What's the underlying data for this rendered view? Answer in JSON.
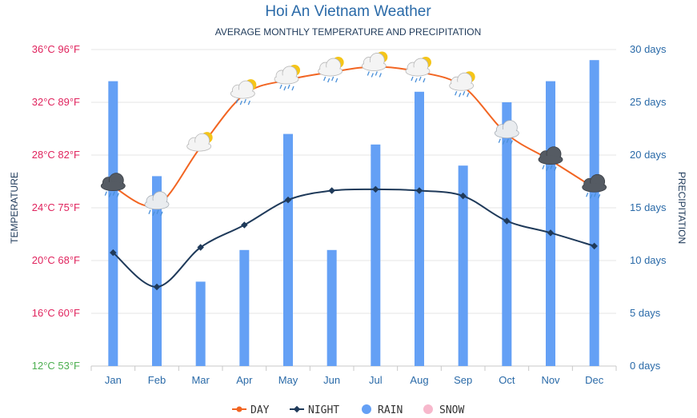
{
  "title": "Hoi An Vietnam Weather",
  "subtitle": "AVERAGE MONTHLY TEMPERATURE AND PRECIPITATION",
  "chart_data": {
    "type": "bar+line",
    "categories": [
      "Jan",
      "Feb",
      "Mar",
      "Apr",
      "May",
      "Jun",
      "Jul",
      "Aug",
      "Sep",
      "Oct",
      "Nov",
      "Dec"
    ],
    "left_axis": {
      "label": "TEMPERATURE",
      "unit": "°C",
      "ylim": [
        12,
        36
      ],
      "ticks": [
        "12°C 53°F",
        "16°C 60°F",
        "20°C 68°F",
        "24°C 75°F",
        "28°C 82°F",
        "32°C 89°F",
        "36°C 96°F"
      ]
    },
    "right_axis": {
      "label": "PRECIPITATION",
      "unit": "days",
      "ylim": [
        0,
        30
      ],
      "ticks": [
        "0 days",
        "5 days",
        "10 days",
        "15 days",
        "20 days",
        "25 days",
        "30 days"
      ]
    },
    "series": [
      {
        "name": "DAY",
        "kind": "line",
        "axis": "left",
        "color": "#f26522",
        "values": [
          25.6,
          24.2,
          28.6,
          32.6,
          33.7,
          34.3,
          34.7,
          34.3,
          33.2,
          29.6,
          27.6,
          25.5
        ]
      },
      {
        "name": "NIGHT",
        "kind": "line",
        "axis": "left",
        "color": "#1f3a5a",
        "values": [
          20.6,
          18.0,
          21.0,
          22.7,
          24.6,
          25.3,
          25.4,
          25.3,
          24.9,
          23.0,
          22.1,
          21.1
        ]
      },
      {
        "name": "RAIN",
        "kind": "bar",
        "axis": "right",
        "color": "#64a0f5",
        "values": [
          27,
          18,
          8,
          11,
          22,
          11,
          21,
          26,
          19,
          25,
          27,
          29
        ]
      },
      {
        "name": "SNOW",
        "kind": "bar",
        "axis": "right",
        "color": "#f7b8cc",
        "values": [
          0,
          0,
          0,
          0,
          0,
          0,
          0,
          0,
          0,
          0,
          0,
          0
        ]
      }
    ],
    "weather_icons": [
      "rain-cloud",
      "light-rain-cloud",
      "partly-sunny",
      "partly-sunny-rain",
      "partly-sunny-rain",
      "partly-sunny-rain",
      "partly-sunny-rain",
      "partly-sunny-rain",
      "partly-sunny-rain",
      "light-rain-cloud",
      "rain-cloud",
      "rain-cloud"
    ],
    "grid": true,
    "legend_position": "bottom-center"
  },
  "legend": [
    {
      "label": "DAY",
      "color": "#f26522",
      "marker": "line-dot"
    },
    {
      "label": "NIGHT",
      "color": "#1f3a5a",
      "marker": "line-diamond"
    },
    {
      "label": "RAIN",
      "color": "#64a0f5",
      "marker": "dot"
    },
    {
      "label": "SNOW",
      "color": "#f7b8cc",
      "marker": "dot"
    }
  ]
}
